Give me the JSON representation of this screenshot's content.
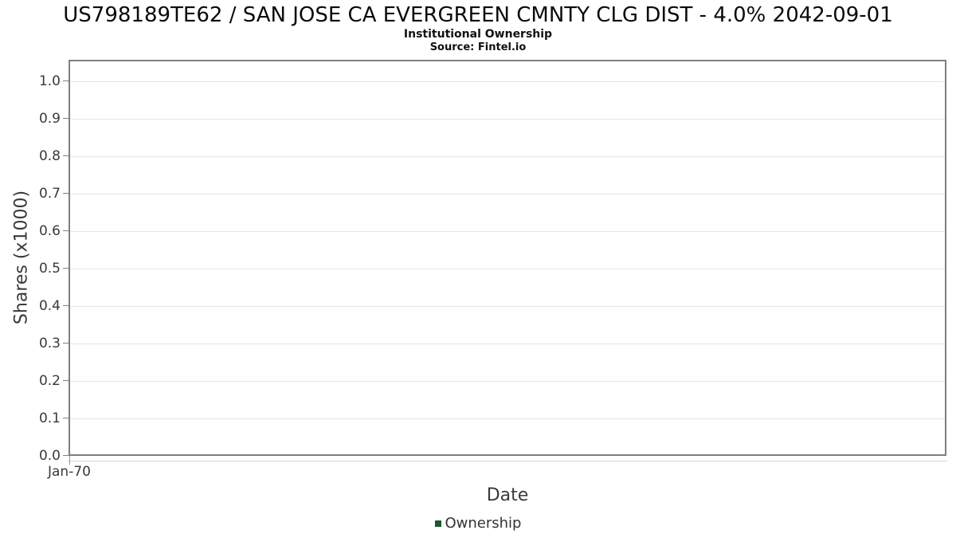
{
  "chart_data": {
    "type": "line",
    "title": "US798189TE62 / SAN JOSE CA EVERGREEN CMNTY CLG DIST - 4.0% 2042-09-01",
    "subtitle": "Institutional Ownership",
    "source": "Source: Fintel.io",
    "xlabel": "Date",
    "ylabel": "Shares (x1000)",
    "xticks": [
      "Jan-70"
    ],
    "yticks": [
      "0.0",
      "0.1",
      "0.2",
      "0.3",
      "0.4",
      "0.5",
      "0.6",
      "0.7",
      "0.8",
      "0.9",
      "1.0"
    ],
    "ylim": [
      0,
      1.057
    ],
    "xlim_labels": [
      "Jan-70"
    ],
    "grid": "horizontal-only",
    "legend_position": "bottom-center",
    "series": [
      {
        "name": "Ownership",
        "color": "#1e572b",
        "x": [],
        "values": []
      }
    ],
    "legend": {
      "items": [
        {
          "label": "Ownership",
          "color": "#1e572b"
        }
      ]
    },
    "colors": {
      "plot_border": "#7f7f7f",
      "gridline": "#e6e6e6",
      "y_tick_mark": "#808080",
      "x_axis_line": "#d4d4d4",
      "x_tick_mark": "#999999",
      "tick_text": "#3a3a3a",
      "title_text": "#0b0b0b",
      "background": "#ffffff"
    }
  }
}
